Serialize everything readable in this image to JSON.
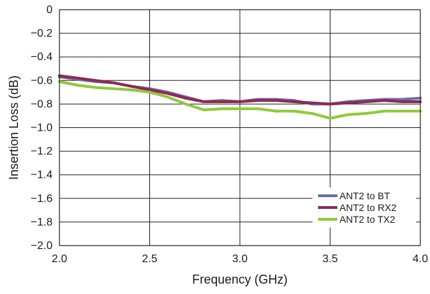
{
  "chart_data": {
    "type": "line",
    "title": "",
    "xlabel": "Frequency (GHz)",
    "ylabel": "Insertion Loss (dB)",
    "xlim": [
      2.0,
      4.0
    ],
    "ylim": [
      -2.0,
      0
    ],
    "grid": true,
    "legend_position": "bottom-right",
    "x_ticks": [
      "2.0",
      "2.5",
      "3.0",
      "3.5",
      "4.0"
    ],
    "y_ticks": [
      "0",
      "−0.2",
      "−0.4",
      "−0.6",
      "−0.8",
      "−1.0",
      "−1.2",
      "−1.4",
      "−1.6",
      "−1.8",
      "−2.0"
    ],
    "series": [
      {
        "name": "ANT2 to BT",
        "color": "#6b6fa8",
        "x": [
          2.0,
          2.1,
          2.2,
          2.3,
          2.4,
          2.5,
          2.6,
          2.7,
          2.8,
          2.9,
          3.0,
          3.1,
          3.2,
          3.3,
          3.4,
          3.5,
          3.6,
          3.7,
          3.8,
          3.9,
          4.0
        ],
        "y": [
          -0.57,
          -0.59,
          -0.61,
          -0.62,
          -0.65,
          -0.67,
          -0.7,
          -0.74,
          -0.78,
          -0.77,
          -0.78,
          -0.76,
          -0.76,
          -0.77,
          -0.8,
          -0.8,
          -0.78,
          -0.77,
          -0.76,
          -0.76,
          -0.75
        ]
      },
      {
        "name": "ANT2 to RX2",
        "color": "#8e2a52",
        "x": [
          2.0,
          2.1,
          2.2,
          2.3,
          2.4,
          2.5,
          2.6,
          2.7,
          2.8,
          2.9,
          3.0,
          3.1,
          3.2,
          3.3,
          3.4,
          3.5,
          3.6,
          3.7,
          3.8,
          3.9,
          4.0
        ],
        "y": [
          -0.56,
          -0.58,
          -0.6,
          -0.62,
          -0.65,
          -0.68,
          -0.71,
          -0.75,
          -0.78,
          -0.78,
          -0.78,
          -0.77,
          -0.77,
          -0.78,
          -0.79,
          -0.8,
          -0.79,
          -0.78,
          -0.77,
          -0.78,
          -0.78
        ]
      },
      {
        "name": "ANT2 to TX2",
        "color": "#8fc93a",
        "x": [
          2.0,
          2.1,
          2.2,
          2.3,
          2.4,
          2.5,
          2.6,
          2.7,
          2.8,
          2.9,
          3.0,
          3.1,
          3.2,
          3.3,
          3.4,
          3.5,
          3.6,
          3.7,
          3.8,
          3.9,
          4.0
        ],
        "y": [
          -0.61,
          -0.64,
          -0.66,
          -0.67,
          -0.68,
          -0.7,
          -0.74,
          -0.8,
          -0.85,
          -0.84,
          -0.84,
          -0.84,
          -0.86,
          -0.86,
          -0.88,
          -0.92,
          -0.89,
          -0.88,
          -0.86,
          -0.86,
          -0.86
        ]
      }
    ]
  }
}
